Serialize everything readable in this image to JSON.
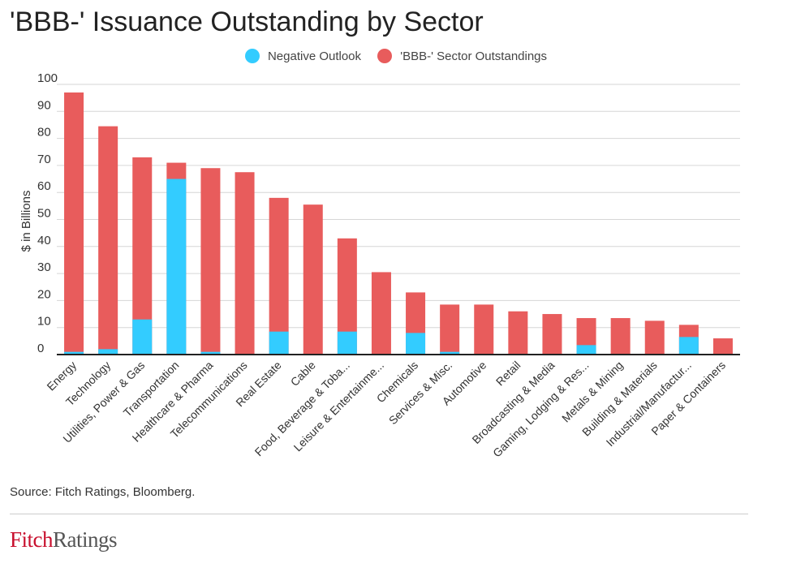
{
  "page": {
    "title": "'BBB-' Issuance Outstanding by Sector",
    "source": "Source: Fitch Ratings, Bloomberg.",
    "logo": {
      "part1": "Fitch",
      "part2": "Ratings"
    }
  },
  "chart_data": {
    "type": "bar",
    "stacked": "overlay",
    "title": "'BBB-' Issuance Outstanding by Sector",
    "xlabel": "",
    "ylabel": "$ in Billions",
    "ylim": [
      0,
      100
    ],
    "yticks": [
      0,
      10,
      20,
      30,
      40,
      50,
      60,
      70,
      80,
      90,
      100
    ],
    "grid": true,
    "legend_position": "top-center",
    "categories": [
      "Energy",
      "Technology",
      "Utilities, Power & Gas",
      "Transportation",
      "Healthcare & Pharma",
      "Telecommunications",
      "Real Estate",
      "Cable",
      "Food, Beverage & Toba...",
      "Leisure & Entertainme...",
      "Chemicals",
      "Services & Misc.",
      "Automotive",
      "Retail",
      "Broadcasting & Media",
      "Gaming, Lodging & Res...",
      "Metals & Mining",
      "Building & Materials",
      "Industrial/Manufactur...",
      "Paper & Containers"
    ],
    "series": [
      {
        "name": "Negative Outlook",
        "color": "#33ccff",
        "values": [
          1,
          2,
          13,
          65,
          1,
          0,
          8.5,
          0,
          8.5,
          0,
          8,
          1,
          0,
          0,
          0,
          3.5,
          0,
          0,
          6.5,
          0
        ]
      },
      {
        "name": "'BBB-' Sector Outstandings",
        "color": "#e85c5c",
        "values": [
          97,
          84.5,
          73,
          71,
          69,
          67.5,
          58,
          55.5,
          43,
          30.5,
          23,
          18.5,
          18.5,
          16,
          15,
          13.5,
          13.5,
          12.5,
          11,
          6
        ]
      }
    ]
  }
}
